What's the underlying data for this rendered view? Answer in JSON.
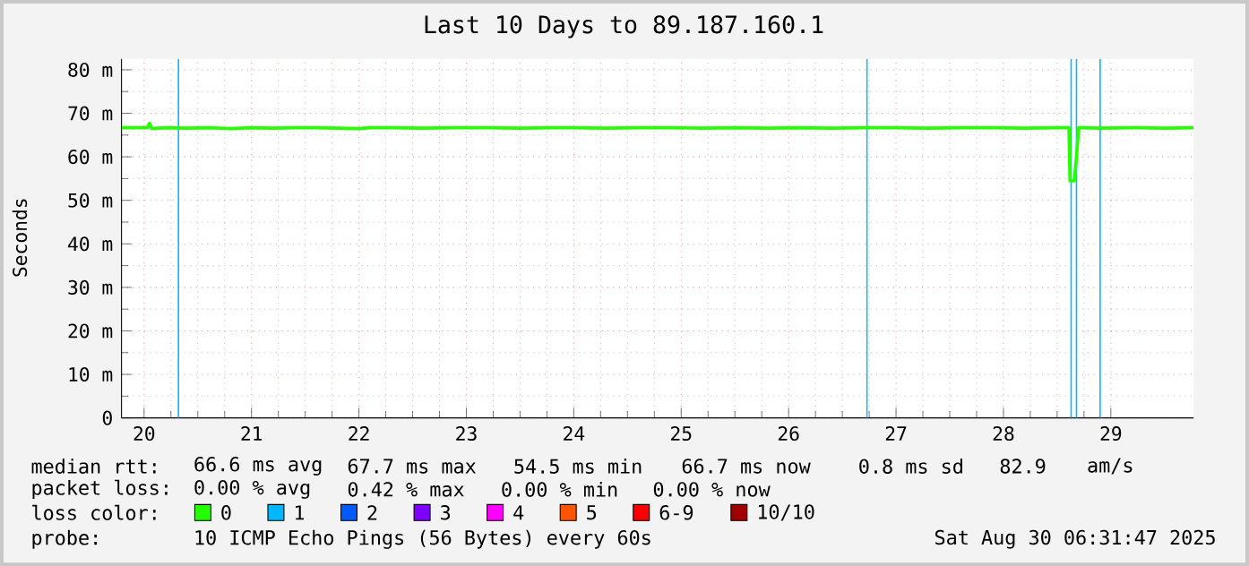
{
  "chart_data": {
    "type": "line",
    "title": "Last 10 Days to 89.187.160.1",
    "ylabel": "Seconds",
    "x": [
      19.79,
      19.95,
      20.03,
      20.05,
      20.07,
      20.2,
      20.4,
      20.6,
      20.8,
      21.0,
      21.2,
      21.4,
      21.6,
      21.8,
      22.0,
      22.1,
      22.3,
      22.6,
      22.9,
      23.2,
      23.5,
      23.8,
      24.0,
      24.3,
      24.6,
      24.9,
      25.2,
      25.5,
      25.8,
      26.1,
      26.4,
      26.7,
      27.0,
      27.3,
      27.6,
      27.9,
      28.2,
      28.5,
      28.61,
      28.62,
      28.66,
      28.68,
      28.7,
      28.72,
      28.9,
      29.2,
      29.5,
      29.77
    ],
    "series": [
      {
        "name": "0",
        "color": "#26ff00",
        "values": [
          66.7,
          66.7,
          66.7,
          67.7,
          66.5,
          66.7,
          66.6,
          66.7,
          66.5,
          66.7,
          66.6,
          66.7,
          66.7,
          66.6,
          66.5,
          66.7,
          66.7,
          66.6,
          66.7,
          66.7,
          66.6,
          66.7,
          66.7,
          66.6,
          66.7,
          66.7,
          66.6,
          66.7,
          66.6,
          66.7,
          66.6,
          66.7,
          66.7,
          66.6,
          66.7,
          66.7,
          66.6,
          66.7,
          66.7,
          54.5,
          54.5,
          60.0,
          66.7,
          66.7,
          66.6,
          66.7,
          66.6,
          66.7
        ]
      },
      {
        "name": "1",
        "color": "#00b8ff",
        "values": [
          null,
          null,
          null,
          null,
          null,
          null,
          null,
          null,
          null,
          null,
          null,
          null,
          null,
          null,
          null,
          null,
          null,
          null,
          null,
          null,
          null,
          null,
          null,
          null,
          null,
          null,
          null,
          null,
          null,
          null,
          null,
          null,
          null,
          null,
          null,
          null,
          null,
          null,
          null,
          null,
          null,
          null,
          null,
          null,
          null,
          null,
          null,
          null
        ]
      },
      {
        "name": "2",
        "color": "#0059ff",
        "values": [
          null,
          null,
          null,
          null,
          null,
          null,
          null,
          null,
          null,
          null,
          null,
          null,
          null,
          null,
          null,
          null,
          null,
          null,
          null,
          null,
          null,
          null,
          null,
          null,
          null,
          null,
          null,
          null,
          null,
          null,
          null,
          null,
          null,
          null,
          null,
          null,
          null,
          null,
          null,
          null,
          null,
          null,
          null,
          null,
          null,
          null,
          null,
          null
        ]
      },
      {
        "name": "3",
        "color": "#7e00ff",
        "values": [
          null,
          null,
          null,
          null,
          null,
          null,
          null,
          null,
          null,
          null,
          null,
          null,
          null,
          null,
          null,
          null,
          null,
          null,
          null,
          null,
          null,
          null,
          null,
          null,
          null,
          null,
          null,
          null,
          null,
          null,
          null,
          null,
          null,
          null,
          null,
          null,
          null,
          null,
          null,
          null,
          null,
          null,
          null,
          null,
          null,
          null,
          null,
          null
        ]
      },
      {
        "name": "4",
        "color": "#ff00ff",
        "values": [
          null,
          null,
          null,
          null,
          null,
          null,
          null,
          null,
          null,
          null,
          null,
          null,
          null,
          null,
          null,
          null,
          null,
          null,
          null,
          null,
          null,
          null,
          null,
          null,
          null,
          null,
          null,
          null,
          null,
          null,
          null,
          null,
          null,
          null,
          null,
          null,
          null,
          null,
          null,
          null,
          null,
          null,
          null,
          null,
          null,
          null,
          null,
          null
        ]
      },
      {
        "name": "5",
        "color": "#ff5500",
        "values": [
          null,
          null,
          null,
          null,
          null,
          null,
          null,
          null,
          null,
          null,
          null,
          null,
          null,
          null,
          null,
          null,
          null,
          null,
          null,
          null,
          null,
          null,
          null,
          null,
          null,
          null,
          null,
          null,
          null,
          null,
          null,
          null,
          null,
          null,
          null,
          null,
          null,
          null,
          null,
          null,
          null,
          null,
          null,
          null,
          null,
          null,
          null,
          null
        ]
      },
      {
        "name": "6-9",
        "color": "#ff0000",
        "values": [
          null,
          null,
          null,
          null,
          null,
          null,
          null,
          null,
          null,
          null,
          null,
          null,
          null,
          null,
          null,
          null,
          null,
          null,
          null,
          null,
          null,
          null,
          null,
          null,
          null,
          null,
          null,
          null,
          null,
          null,
          null,
          null,
          null,
          null,
          null,
          null,
          null,
          null,
          null,
          null,
          null,
          null,
          null,
          null,
          null,
          null,
          null,
          null
        ]
      },
      {
        "name": "10/10",
        "color": "#a10000",
        "values": [
          null,
          null,
          null,
          null,
          null,
          null,
          null,
          null,
          null,
          null,
          null,
          null,
          null,
          null,
          null,
          null,
          null,
          null,
          null,
          null,
          null,
          null,
          null,
          null,
          null,
          null,
          null,
          null,
          null,
          null,
          null,
          null,
          null,
          null,
          null,
          null,
          null,
          null,
          null,
          null,
          null,
          null,
          null,
          null,
          null,
          null,
          null,
          null
        ]
      }
    ],
    "legend": "bottom",
    "legend_title": "loss color:",
    "xlim": [
      19.79,
      29.77
    ],
    "xticks": [
      20,
      21,
      22,
      23,
      24,
      25,
      26,
      27,
      28,
      29
    ],
    "ylim": [
      0,
      82.5
    ],
    "yticks": [
      0,
      {
        "value": 10,
        "label": "10 m"
      },
      {
        "value": 20,
        "label": "20 m"
      },
      {
        "value": 30,
        "label": "30 m"
      },
      {
        "value": 40,
        "label": "40 m"
      },
      {
        "value": 50,
        "label": "50 m"
      },
      {
        "value": 60,
        "label": "60 m"
      },
      {
        "value": 70,
        "label": "70 m"
      },
      {
        "value": 80,
        "label": "80 m"
      }
    ],
    "grid": true,
    "ref_lines": [
      {
        "axis": "x",
        "value": 20.32,
        "color": "#00b8ff"
      },
      {
        "axis": "x",
        "value": 26.73,
        "color": "#00b8ff"
      },
      {
        "axis": "x",
        "value": 28.63,
        "color": "#00b8ff"
      },
      {
        "axis": "x",
        "value": 28.68,
        "color": "#00b8ff"
      },
      {
        "axis": "x",
        "value": 28.9,
        "color": "#00b8ff"
      }
    ],
    "annotations": [
      "median rtt:",
      "66.6 ms avg",
      "67.7 ms max",
      "54.5 ms min",
      "66.7 ms now",
      "0.8 ms sd",
      "82.9",
      "am/s",
      "packet loss:",
      "0.00 % avg",
      "0.42 % max",
      "0.00 % min",
      "0.00 % now",
      "probe:",
      "10 ICMP Echo Pings (56 Bytes) every 60s",
      "Sat Aug 30 06:31:47 2025"
    ]
  }
}
